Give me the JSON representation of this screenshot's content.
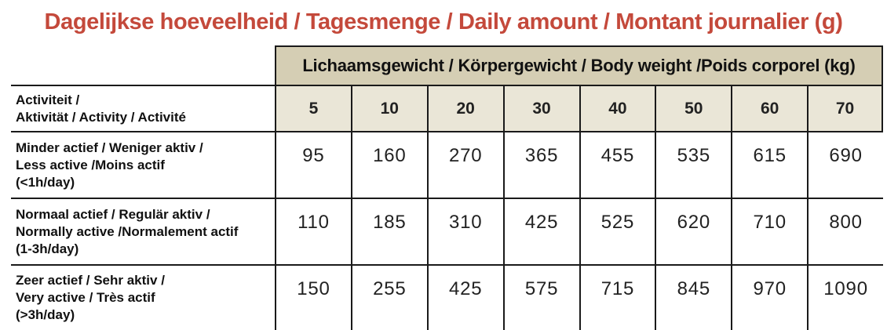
{
  "title": "Dagelijkse hoeveelheid / Tagesmenge / Daily amount / Montant journalier (g)",
  "table": {
    "weight_header": "Lichaamsgewicht / Körpergewicht / Body weight /Poids corporel (kg)",
    "activity_header": [
      "Activiteit /",
      "Aktivität / Activity / Activité"
    ],
    "weights_kg": [
      "5",
      "10",
      "20",
      "30",
      "40",
      "50",
      "60",
      "70"
    ],
    "rows": [
      {
        "label_lines": [
          "Minder actief / Weniger aktiv /",
          "Less active /Moins actif",
          "(<1h/day)"
        ],
        "values": [
          "95",
          "160",
          "270",
          "365",
          "455",
          "535",
          "615",
          "690"
        ]
      },
      {
        "label_lines": [
          "Normaal actief / Regulär aktiv /",
          "Normally active /Normalement actif",
          "(1-3h/day)"
        ],
        "values": [
          "110",
          "185",
          "310",
          "425",
          "525",
          "620",
          "710",
          "800"
        ]
      },
      {
        "label_lines": [
          "Zeer actief / Sehr aktiv /",
          "Very active / Très actif",
          "(>3h/day)"
        ],
        "values": [
          "150",
          "255",
          "425",
          "575",
          "715",
          "845",
          "970",
          "1090"
        ]
      }
    ]
  },
  "colors": {
    "title_red": "#c4493b",
    "header_tan": "#d5ceb4",
    "header_beige": "#eae6d7",
    "border": "#1a1a1a",
    "text": "#111111"
  }
}
